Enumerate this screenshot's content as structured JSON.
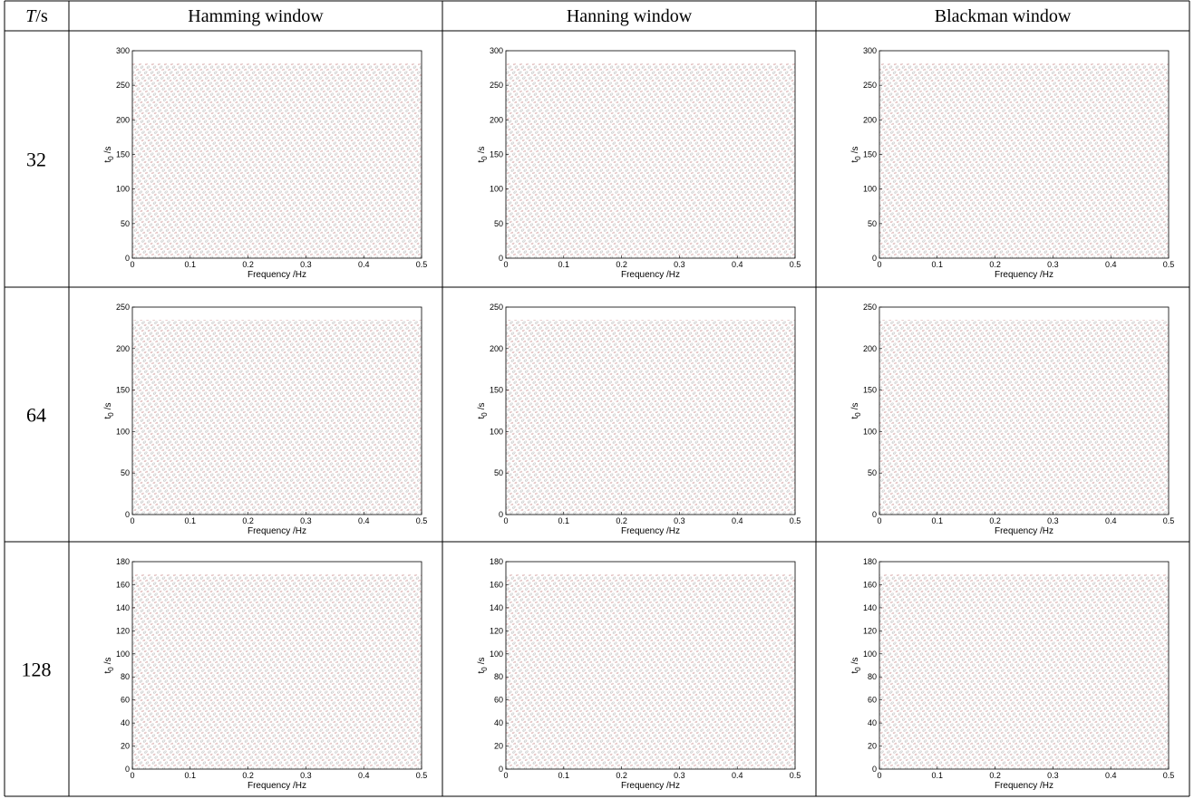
{
  "table": {
    "header": [
      {
        "symbol": "T",
        "unit": "/s"
      },
      "Hamming window",
      "Hanning window",
      "Blackman window"
    ],
    "rows": [
      {
        "T": 32,
        "plots": [
          {
            "xlim": [
              0,
              0.5
            ],
            "xticks": [
              0,
              0.1,
              0.2,
              0.3,
              0.4,
              0.5
            ],
            "ylim": [
              0,
              300
            ],
            "yticks": [
              0,
              50,
              100,
              150,
              200,
              250,
              300
            ],
            "xlabel": "Frequency /Hz",
            "ylabel": {
              "symbol": "t",
              "subscript": "0",
              "unit": "/s"
            }
          },
          {
            "xlim": [
              0,
              0.5
            ],
            "xticks": [
              0,
              0.1,
              0.2,
              0.3,
              0.4,
              0.5
            ],
            "ylim": [
              0,
              300
            ],
            "yticks": [
              0,
              50,
              100,
              150,
              200,
              250,
              300
            ],
            "xlabel": "Frequency /Hz",
            "ylabel": {
              "symbol": "t",
              "subscript": "0",
              "unit": "/s"
            }
          },
          {
            "xlim": [
              0,
              0.5
            ],
            "xticks": [
              0,
              0.1,
              0.2,
              0.3,
              0.4,
              0.5
            ],
            "ylim": [
              0,
              300
            ],
            "yticks": [
              0,
              50,
              100,
              150,
              200,
              250,
              300
            ],
            "xlabel": "Frequency /Hz",
            "ylabel": {
              "symbol": "t",
              "subscript": "0",
              "unit": "/s"
            }
          }
        ]
      },
      {
        "T": 64,
        "plots": [
          {
            "xlim": [
              0,
              0.5
            ],
            "xticks": [
              0,
              0.1,
              0.2,
              0.3,
              0.4,
              0.5
            ],
            "ylim": [
              0,
              250
            ],
            "yticks": [
              0,
              50,
              100,
              150,
              200,
              250
            ],
            "xlabel": "Frequency /Hz",
            "ylabel": {
              "symbol": "t",
              "subscript": "0",
              "unit": "/s"
            }
          },
          {
            "xlim": [
              0,
              0.5
            ],
            "xticks": [
              0,
              0.1,
              0.2,
              0.3,
              0.4,
              0.5
            ],
            "ylim": [
              0,
              250
            ],
            "yticks": [
              0,
              50,
              100,
              150,
              200,
              250
            ],
            "xlabel": "Frequency /Hz",
            "ylabel": {
              "symbol": "t",
              "subscript": "0",
              "unit": "/s"
            }
          },
          {
            "xlim": [
              0,
              0.5
            ],
            "xticks": [
              0,
              0.1,
              0.2,
              0.3,
              0.4,
              0.5
            ],
            "ylim": [
              0,
              250
            ],
            "yticks": [
              0,
              50,
              100,
              150,
              200,
              250
            ],
            "xlabel": "Frequency /Hz",
            "ylabel": {
              "symbol": "t",
              "subscript": "0",
              "unit": "/s"
            }
          }
        ]
      },
      {
        "T": 128,
        "plots": [
          {
            "xlim": [
              0,
              0.5
            ],
            "xticks": [
              0,
              0.1,
              0.2,
              0.3,
              0.4,
              0.5
            ],
            "ylim": [
              0,
              180
            ],
            "yticks": [
              0,
              20,
              40,
              60,
              80,
              100,
              120,
              140,
              160,
              180
            ],
            "xlabel": "Frequency /Hz",
            "ylabel": {
              "symbol": "t",
              "subscript": "0",
              "unit": "/s"
            }
          },
          {
            "xlim": [
              0,
              0.5
            ],
            "xticks": [
              0,
              0.1,
              0.2,
              0.3,
              0.4,
              0.5
            ],
            "ylim": [
              0,
              180
            ],
            "yticks": [
              0,
              20,
              40,
              60,
              80,
              100,
              120,
              140,
              160,
              180
            ],
            "xlabel": "Frequency /Hz",
            "ylabel": {
              "symbol": "t",
              "subscript": "0",
              "unit": "/s"
            }
          },
          {
            "xlim": [
              0,
              0.5
            ],
            "xticks": [
              0,
              0.1,
              0.2,
              0.3,
              0.4,
              0.5
            ],
            "ylim": [
              0,
              180
            ],
            "yticks": [
              0,
              20,
              40,
              60,
              80,
              100,
              120,
              140,
              160,
              180
            ],
            "xlabel": "Frequency /Hz",
            "ylabel": {
              "symbol": "t",
              "subscript": "0",
              "unit": "/s"
            }
          }
        ]
      }
    ]
  }
}
